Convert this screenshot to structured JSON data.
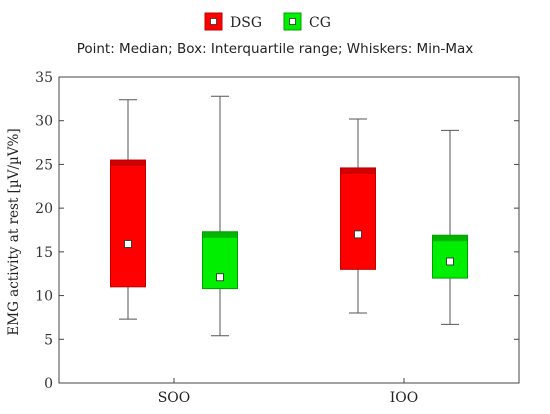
{
  "chart_data": {
    "type": "box",
    "subtitle": "Point: Median; Box: Interquartile range; Whiskers: Min-Max",
    "ylabel": "EMG activity at rest [µV/µV%]",
    "xlabel": "",
    "ylim": [
      0,
      35
    ],
    "yticks": [
      "0",
      "5",
      "10",
      "15",
      "20",
      "25",
      "30",
      "35"
    ],
    "grid": false,
    "legend_position": "top-center",
    "categories": [
      "SOO",
      "IOO"
    ],
    "series": [
      {
        "name": "DSG",
        "color": "#ff0000",
        "median_color": "#c00000",
        "stats": [
          {
            "min": 7.3,
            "q1": 11.0,
            "median": 15.9,
            "q3": 25.5,
            "max": 32.4
          },
          {
            "min": 8.0,
            "q1": 13.0,
            "median": 17.0,
            "q3": 24.6,
            "max": 30.2
          }
        ]
      },
      {
        "name": "CG",
        "color": "#00ee00",
        "median_color": "#00a000",
        "stats": [
          {
            "min": 5.4,
            "q1": 10.8,
            "median": 12.1,
            "q3": 17.3,
            "max": 32.8
          },
          {
            "min": 6.7,
            "q1": 12.0,
            "median": 13.9,
            "q3": 16.9,
            "max": 28.9
          }
        ]
      }
    ]
  }
}
